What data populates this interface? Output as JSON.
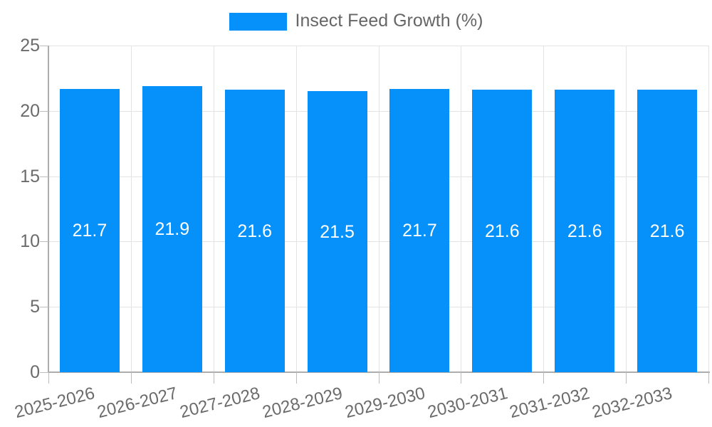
{
  "chart_data": {
    "type": "bar",
    "title": "",
    "legend": "Insect Feed Growth (%)",
    "legend_position": "top",
    "categories": [
      "2025-2026",
      "2026-2027",
      "2027-2028",
      "2028-2029",
      "2029-2030",
      "2030-2031",
      "2031-2032",
      "2032-2033"
    ],
    "values": [
      21.7,
      21.9,
      21.6,
      21.5,
      21.7,
      21.6,
      21.6,
      21.6
    ],
    "value_labels": [
      "21.7",
      "21.9",
      "21.6",
      "21.5",
      "21.7",
      "21.6",
      "21.6",
      "21.6"
    ],
    "xlabel": "",
    "ylabel": "",
    "ylim": [
      0,
      25
    ],
    "yticks": [
      0,
      5,
      10,
      15,
      20,
      25
    ],
    "ytick_labels": [
      "0",
      "5",
      "10",
      "15",
      "20",
      "25"
    ],
    "grid": true,
    "colors": {
      "bar": "#0590fa",
      "grid": "#e3e3e3",
      "axis": "#adadad",
      "tickmark": "#bdbdbd",
      "ticktext": "#6b6b6b",
      "legendtext": "#666666",
      "valuetext": "#ffffff"
    }
  }
}
